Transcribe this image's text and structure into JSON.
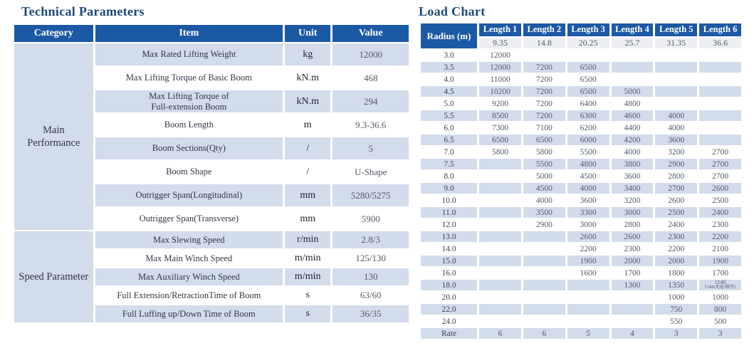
{
  "technical_parameters": {
    "title": "Technical Parameters",
    "columns": [
      "Category",
      "Item",
      "Unit",
      "Value"
    ],
    "groups": [
      {
        "category": "Main Performance",
        "rows": [
          {
            "item": "Max Rated Lifting Weight",
            "unit": "kg",
            "value": "12000"
          },
          {
            "item": "Max Lifting Torque of Basic Boom",
            "unit": "kN.m",
            "value": "468"
          },
          {
            "item": "Max Lifting Torque of\nFull-extension Boom",
            "unit": "kN.m",
            "value": "294"
          },
          {
            "item": "Boom Length",
            "unit": "m",
            "value": "9.3-36.6"
          },
          {
            "item": "Boom Sections(Qty)",
            "unit": "/",
            "value": "5"
          },
          {
            "item": "Boom Shape",
            "unit": "/",
            "value": "U-Shape"
          },
          {
            "item": "Outrigger Span(Longitudinal)",
            "unit": "mm",
            "value": "5280/5275"
          },
          {
            "item": "Outrigger Span(Transverse)",
            "unit": "mm",
            "value": "5900"
          }
        ]
      },
      {
        "category": "Speed Parameter",
        "rows": [
          {
            "item": "Max Slewing Speed",
            "unit": "r/min",
            "value": "2.8/3"
          },
          {
            "item": "Max Main Winch Speed",
            "unit": "m/min",
            "value": "125/130"
          },
          {
            "item": "Max Auxiliary Winch Speed",
            "unit": "m/min",
            "value": "130"
          },
          {
            "item": "Full Extension/RetractionTime of Boom",
            "unit": "s",
            "value": "63/60"
          },
          {
            "item": "Full Luffing up/Down Time of Boom",
            "unit": "s",
            "value": "36/35"
          }
        ]
      }
    ]
  },
  "load_chart": {
    "title": "Load Chart",
    "radius_header": "Radius (m)",
    "length_headers": [
      "Length 1",
      "Length 2",
      "Length 3",
      "Length 4",
      "Length 5",
      "Length 6"
    ],
    "boom_lengths": [
      "9.35",
      "14.8",
      "20.25",
      "25.7",
      "31.35",
      "36.6"
    ],
    "rows": [
      {
        "radius": "3.0",
        "loads": [
          "12000",
          "",
          "",
          "",
          "",
          ""
        ]
      },
      {
        "radius": "3.5",
        "loads": [
          "12000",
          "7200",
          "6500",
          "",
          "",
          ""
        ]
      },
      {
        "radius": "4.0",
        "loads": [
          "11000",
          "7200",
          "6500",
          "",
          "",
          ""
        ]
      },
      {
        "radius": "4.5",
        "loads": [
          "10200",
          "7200",
          "6500",
          "5000",
          "",
          ""
        ]
      },
      {
        "radius": "5.0",
        "loads": [
          "9200",
          "7200",
          "6400",
          "4800",
          "",
          ""
        ]
      },
      {
        "radius": "5.5",
        "loads": [
          "8500",
          "7200",
          "6300",
          "4600",
          "4000",
          ""
        ]
      },
      {
        "radius": "6.0",
        "loads": [
          "7300",
          "7100",
          "6200",
          "4400",
          "4000",
          ""
        ]
      },
      {
        "radius": "6.5",
        "loads": [
          "6500",
          "6500",
          "6000",
          "4200",
          "3600",
          ""
        ]
      },
      {
        "radius": "7.0",
        "loads": [
          "5800",
          "5800",
          "5500",
          "4000",
          "3200",
          "2700"
        ]
      },
      {
        "radius": "7.5",
        "loads": [
          "",
          "5500",
          "4800",
          "3800",
          "2900",
          "2700"
        ]
      },
      {
        "radius": "8.0",
        "loads": [
          "",
          "5000",
          "4500",
          "3600",
          "2800",
          "2700"
        ]
      },
      {
        "radius": "9.0",
        "loads": [
          "",
          "4500",
          "4000",
          "3400",
          "2700",
          "2600"
        ]
      },
      {
        "radius": "10.0",
        "loads": [
          "",
          "4000",
          "3600",
          "3200",
          "2600",
          "2500"
        ]
      },
      {
        "radius": "11.0",
        "loads": [
          "",
          "3500",
          "3300",
          "3000",
          "2500",
          "2400"
        ]
      },
      {
        "radius": "12.0",
        "loads": [
          "",
          "2900",
          "3000",
          "2800",
          "2400",
          "2300"
        ]
      },
      {
        "radius": "13.0",
        "loads": [
          "",
          "",
          "2600",
          "2600",
          "2300",
          "2200"
        ]
      },
      {
        "radius": "14.0",
        "loads": [
          "",
          "",
          "2200",
          "2300",
          "2200",
          "2100"
        ]
      },
      {
        "radius": "15.0",
        "loads": [
          "",
          "",
          "1900",
          "2000",
          "2000",
          "1900"
        ]
      },
      {
        "radius": "16.0",
        "loads": [
          "",
          "",
          "1600",
          "1700",
          "1800",
          "1700"
        ]
      },
      {
        "radius": "18.0",
        "loads": [
          "",
          "",
          "",
          "1300",
          "1350",
          "1140\n（1400大运/陕汽）"
        ]
      },
      {
        "radius": "20.0",
        "loads": [
          "",
          "",
          "",
          "",
          "1000",
          "1000"
        ]
      },
      {
        "radius": "22.0",
        "loads": [
          "",
          "",
          "",
          "",
          "750",
          "800"
        ]
      },
      {
        "radius": "24.0",
        "loads": [
          "",
          "",
          "",
          "",
          "550",
          "500"
        ]
      },
      {
        "radius": "Rate",
        "loads": [
          "6",
          "6",
          "5",
          "4",
          "3",
          "3"
        ]
      }
    ]
  },
  "colors": {
    "title_navy": "#1E4878",
    "header_blue": "#1C59A5",
    "stripe_blue": "#D3DCEB",
    "row_white": "#FFFFFF",
    "subheader_gray": "#EDEFF4",
    "text_dark": "#2F3744",
    "text_gray": "#565B66"
  }
}
